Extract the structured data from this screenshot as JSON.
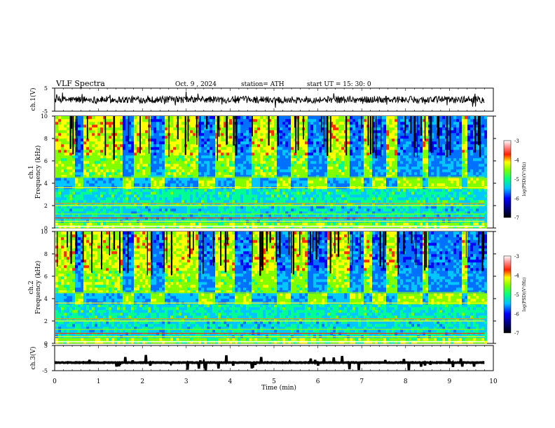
{
  "header": {
    "title": "VLF  Spectra",
    "date": "Oct. 9  , 2024",
    "station": "station= ATH",
    "start": "start  UT  =    15: 30: 0"
  },
  "chart_data": [
    {
      "type": "line",
      "panel": "ch1-waveform",
      "ylabel": "ch.1(V)",
      "ylim": [
        -5,
        5
      ],
      "yticks": [
        "5",
        "-5"
      ],
      "xlim": [
        0,
        10
      ],
      "series": [
        {
          "color": "#000000",
          "level": 0.0,
          "noise_amplitude": 1.5
        }
      ]
    },
    {
      "type": "heatmap",
      "panel": "ch1-spectrogram",
      "ylabel": "ch.1\nFrequency  (kHz)",
      "ylim": [
        0,
        10
      ],
      "yticks": [
        "0",
        "2",
        "4",
        "6",
        "8",
        "10"
      ],
      "xlim": [
        0,
        9.8
      ],
      "colorbar": {
        "label": "log(PSD)(V²/Hz)",
        "range": [
          -7,
          -3
        ],
        "ticks": [
          "-3",
          "-4",
          "-5",
          "-6",
          "-7"
        ]
      },
      "bursts": [
        [
          0.0,
          0.4
        ],
        [
          0.65,
          1.5
        ],
        [
          1.75,
          2.15
        ],
        [
          2.45,
          3.25
        ],
        [
          3.6,
          4.1
        ],
        [
          4.45,
          5.0
        ],
        [
          5.35,
          5.75
        ],
        [
          6.2,
          6.7
        ],
        [
          7.0,
          7.2
        ],
        [
          7.5,
          7.75
        ],
        [
          8.35,
          8.5
        ],
        [
          9.25,
          9.4
        ]
      ],
      "notch_band_khz": [
        3.6,
        4.3
      ]
    },
    {
      "type": "heatmap",
      "panel": "ch2-spectrogram",
      "ylabel": "ch.2\nFrequency  (kHz)",
      "ylim": [
        0,
        10
      ],
      "yticks": [
        "0",
        "2",
        "4",
        "6",
        "8",
        "10"
      ],
      "xlim": [
        0,
        9.8
      ],
      "colorbar": {
        "label": "log(PSD)(V²/Hz)",
        "range": [
          -7,
          -3
        ],
        "ticks": [
          "-3",
          "-4",
          "-5",
          "-6",
          "-7"
        ]
      },
      "bursts": [
        [
          0.0,
          0.4
        ],
        [
          0.65,
          1.5
        ],
        [
          1.75,
          2.15
        ],
        [
          2.45,
          3.25
        ],
        [
          3.6,
          4.1
        ],
        [
          4.45,
          5.0
        ],
        [
          5.35,
          5.75
        ],
        [
          6.2,
          6.7
        ],
        [
          7.0,
          7.2
        ],
        [
          7.5,
          7.75
        ],
        [
          8.35,
          8.5
        ],
        [
          9.25,
          9.4
        ]
      ],
      "notch_band_khz": [
        3.6,
        4.3
      ]
    },
    {
      "type": "line",
      "panel": "ch3-waveform",
      "ylabel": "ch.3(V)",
      "ylim": [
        -5,
        5
      ],
      "yticks": [
        "5",
        "-5"
      ],
      "xlim": [
        0,
        10
      ],
      "xlabel": "Time  (min)",
      "xticks": [
        "0",
        "1",
        "2",
        "3",
        "4",
        "5",
        "6",
        "7",
        "8",
        "9",
        "10"
      ],
      "series": [
        {
          "color": "#000000",
          "level": -1.8,
          "noise_amplitude": 0.1
        }
      ]
    }
  ]
}
